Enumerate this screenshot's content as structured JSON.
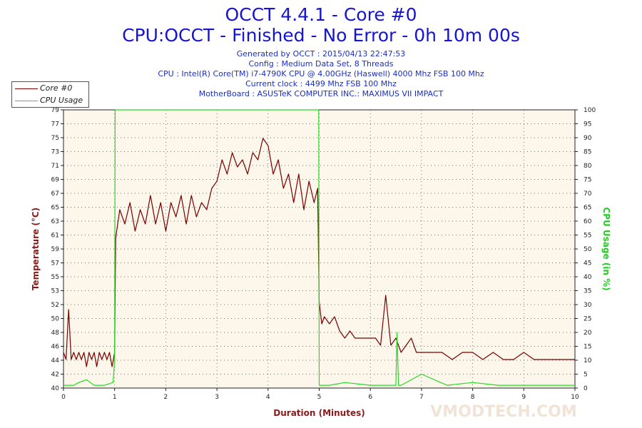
{
  "header": {
    "title": "OCCT 4.4.1 - Core #0",
    "subtitle": "CPU:OCCT - Finished - No Error - 0h 10m 00s",
    "meta": [
      "Generated by OCCT : 2015/04/13 22:47:53",
      "Config : Medium Data Set, 8 Threads",
      "CPU : Intel(R) Core(TM) i7-4790K CPU @ 4.00GHz (Haswell) 4000 Mhz FSB 100 Mhz",
      "Current clock : 4499 Mhz FSB 100 Mhz",
      "MotherBoard : ASUSTeK COMPUTER INC.: MAXIMUS VII IMPACT"
    ]
  },
  "watermark": "VMODTECH.COM",
  "colors": {
    "temperature": "#7a0000",
    "cpu_usage": "#22dd22",
    "plot_bg": "#fdf6ea",
    "header": "#1414d2"
  },
  "chart_data": {
    "type": "line",
    "xlabel": "Duration (Minutes)",
    "ylabel": "Temperature (°C)",
    "y2label": "CPU Usage (in %)",
    "xlim": [
      0,
      10
    ],
    "ylim": [
      40,
      79
    ],
    "y2lim": [
      0,
      100
    ],
    "xticks": [
      "0",
      "1",
      "2",
      "3",
      "4",
      "5",
      "6",
      "7",
      "8",
      "9",
      "10"
    ],
    "yticks": [
      "40",
      "42",
      "44",
      "46",
      "48",
      "50",
      "52",
      "53",
      "55",
      "57",
      "59",
      "61",
      "63",
      "65",
      "67",
      "69",
      "71",
      "73",
      "75",
      "77",
      "79"
    ],
    "y2ticks": [
      "0",
      "5",
      "10",
      "15",
      "20",
      "25",
      "30",
      "35",
      "40",
      "45",
      "50",
      "55",
      "60",
      "65",
      "70",
      "75",
      "80",
      "85",
      "90",
      "95",
      "100"
    ],
    "grid": true,
    "legend_position": "top-left",
    "series": [
      {
        "name": "Core #0",
        "axis": "left",
        "x": [
          0,
          0.05,
          0.1,
          0.15,
          0.2,
          0.25,
          0.3,
          0.35,
          0.4,
          0.45,
          0.5,
          0.55,
          0.6,
          0.65,
          0.7,
          0.75,
          0.8,
          0.85,
          0.9,
          0.95,
          1.0,
          1.02,
          1.1,
          1.2,
          1.3,
          1.4,
          1.5,
          1.6,
          1.7,
          1.8,
          1.9,
          2.0,
          2.1,
          2.2,
          2.3,
          2.4,
          2.5,
          2.6,
          2.7,
          2.8,
          2.9,
          3.0,
          3.1,
          3.2,
          3.3,
          3.4,
          3.5,
          3.6,
          3.7,
          3.8,
          3.9,
          4.0,
          4.1,
          4.2,
          4.3,
          4.4,
          4.5,
          4.6,
          4.7,
          4.8,
          4.9,
          4.97,
          5.0,
          5.05,
          5.1,
          5.2,
          5.3,
          5.4,
          5.5,
          5.6,
          5.7,
          5.8,
          5.9,
          6.0,
          6.1,
          6.2,
          6.3,
          6.4,
          6.5,
          6.6,
          6.7,
          6.8,
          6.9,
          7.0,
          7.2,
          7.4,
          7.6,
          7.8,
          8.0,
          8.2,
          8.4,
          8.6,
          8.8,
          9.0,
          9.2,
          9.4,
          9.6,
          9.8,
          10.0
        ],
        "values": [
          45,
          44,
          51,
          44,
          45,
          44,
          45,
          44,
          45,
          43,
          45,
          44,
          45,
          43,
          45,
          44,
          45,
          44,
          45,
          43,
          45,
          61,
          65,
          63,
          66,
          62,
          65,
          63,
          67,
          63,
          66,
          62,
          66,
          64,
          67,
          63,
          67,
          64,
          66,
          65,
          68,
          69,
          72,
          70,
          73,
          71,
          72,
          70,
          73,
          72,
          75,
          74,
          70,
          72,
          68,
          70,
          66,
          70,
          65,
          69,
          66,
          68,
          52,
          49,
          50,
          49,
          50,
          48,
          47,
          48,
          47,
          47,
          47,
          47,
          47,
          46,
          53,
          46,
          47,
          45,
          46,
          47,
          45,
          45,
          45,
          45,
          44,
          45,
          45,
          44,
          45,
          44,
          44,
          45,
          44,
          44,
          44,
          44,
          44
        ]
      },
      {
        "name": "CPU Usage",
        "axis": "right",
        "x": [
          0,
          0.2,
          0.3,
          0.45,
          0.6,
          0.8,
          0.97,
          1.0,
          1.01,
          4.99,
          5.0,
          5.2,
          5.5,
          6.0,
          6.5,
          6.52,
          6.55,
          6.6,
          7.0,
          7.5,
          8.0,
          8.5,
          9.0,
          9.5,
          10.0
        ],
        "values": [
          1,
          1,
          2,
          3,
          1,
          1,
          2,
          10,
          100,
          100,
          1,
          1,
          2,
          1,
          1,
          20,
          1,
          1,
          5,
          1,
          2,
          1,
          1,
          1,
          1
        ]
      }
    ]
  }
}
